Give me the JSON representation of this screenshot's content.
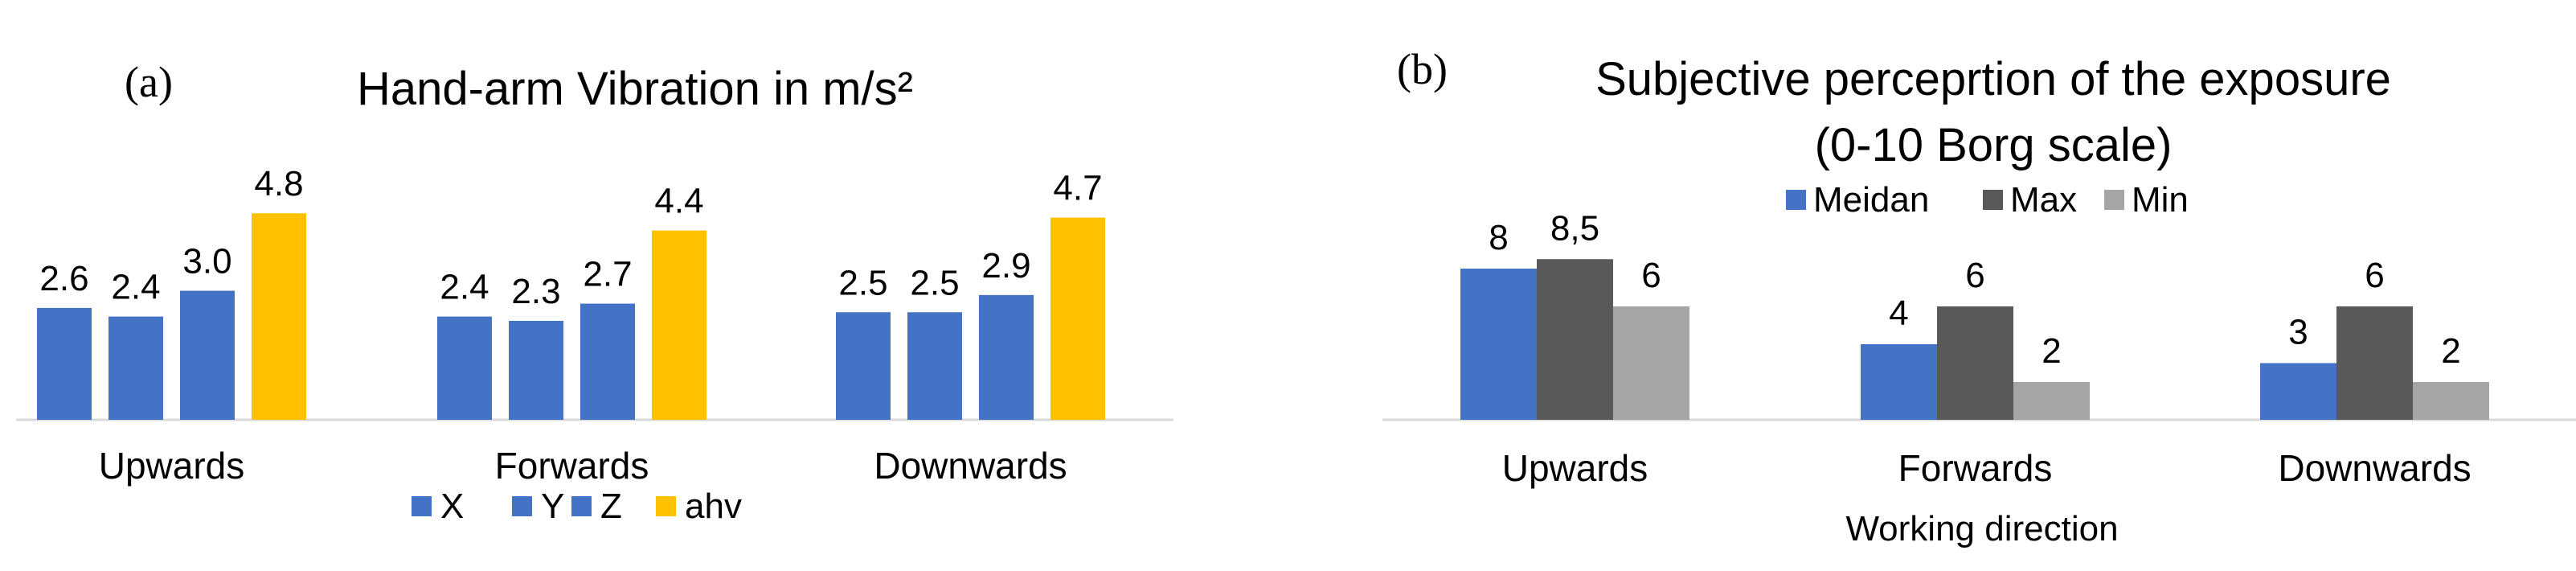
{
  "chart_data": [
    {
      "panel_label": "(a)",
      "type": "bar",
      "title": "Hand-arm Vibration in m/s²",
      "subtitle": "",
      "xlabel": "",
      "ylabel": "",
      "categories": [
        "Upwards",
        "Forwards",
        "Downwards"
      ],
      "series": [
        {
          "name": "X",
          "values": [
            2.6,
            2.4,
            2.5
          ],
          "labels": [
            "2.6",
            "2.4",
            "2.5"
          ],
          "color": "#4472C4"
        },
        {
          "name": "Y",
          "values": [
            2.4,
            2.3,
            2.5
          ],
          "labels": [
            "2.4",
            "2.3",
            "2.5"
          ],
          "color": "#4472C4"
        },
        {
          "name": "Z",
          "values": [
            3.0,
            2.7,
            2.9
          ],
          "labels": [
            "3.0",
            "2.7",
            "2.9"
          ],
          "color": "#4472C4"
        },
        {
          "name": "ahv",
          "values": [
            4.8,
            4.4,
            4.7
          ],
          "labels": [
            "4.8",
            "4.4",
            "4.7"
          ],
          "color": "#FFC000"
        }
      ],
      "ylim": [
        0,
        5
      ],
      "grid": false,
      "legend_position": "bottom"
    },
    {
      "panel_label": "(b)",
      "type": "bar",
      "title": "Subjective perceprtion of the exposure",
      "subtitle": "(0-10 Borg scale)",
      "xlabel": "Working direction",
      "ylabel": "",
      "categories": [
        "Upwards",
        "Forwards",
        "Downwards"
      ],
      "series": [
        {
          "name": "Meidan",
          "values": [
            8,
            4,
            3
          ],
          "labels": [
            "8",
            "4",
            "3"
          ],
          "color": "#4472C4"
        },
        {
          "name": "Max",
          "values": [
            8.5,
            6,
            6
          ],
          "labels": [
            "8,5",
            "6",
            "6"
          ],
          "color": "#595959"
        },
        {
          "name": "Min",
          "values": [
            6,
            2,
            2
          ],
          "labels": [
            "6",
            "2",
            "2"
          ],
          "color": "#A5A5A5"
        }
      ],
      "ylim": [
        0,
        10
      ],
      "grid": false,
      "legend_position": "top"
    }
  ]
}
